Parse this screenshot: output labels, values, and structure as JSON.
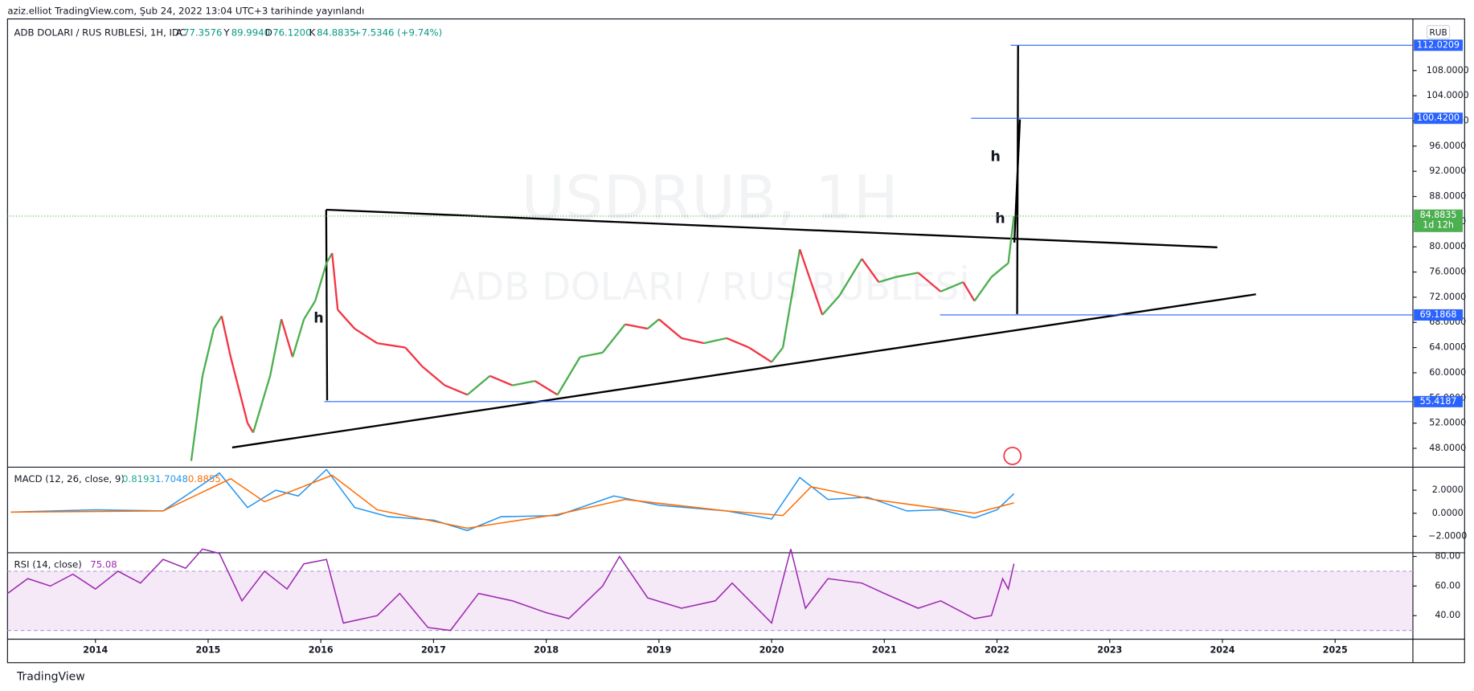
{
  "header": {
    "text": "aziz.elliot TradingView.com, Şub 24, 2022 13:04 UTC+3 tarihinde yayınlandı"
  },
  "legend": {
    "symbol": "ADB DOLARI / RUS RUBLESİ, 1H, IDC",
    "o_key": "A",
    "o": "77.3576",
    "h_key": "Y",
    "h": "89.9940",
    "l_key": "D",
    "l": "76.1200",
    "c_key": "K",
    "c": "84.8835",
    "change": "+7.5346 (+9.74%)"
  },
  "watermark": {
    "line1": "USDRUB, 1H",
    "line2": "ADB DOLARI / RUS RUBLESİ"
  },
  "currency": "RUB",
  "annotations": [
    "h",
    "h",
    "h"
  ],
  "footer": "TradingView",
  "chart_data": [
    {
      "type": "line",
      "name": "price",
      "xlim": [
        2013.22,
        2025.69
      ],
      "xticks": [
        2014,
        2015,
        2016,
        2017,
        2018,
        2019,
        2020,
        2021,
        2022,
        2023,
        2024,
        2025
      ],
      "ylim": [
        45.0,
        116.2
      ],
      "yticks": [
        {
          "value": 48,
          "label": "48.0000"
        },
        {
          "value": 52,
          "label": "52.0000"
        },
        {
          "value": 56,
          "label": "56.0000"
        },
        {
          "value": 60,
          "label": "60.0000"
        },
        {
          "value": 64,
          "label": "64.0000"
        },
        {
          "value": 68,
          "label": "68.0000"
        },
        {
          "value": 72,
          "label": "72.0000"
        },
        {
          "value": 76,
          "label": "76.0000"
        },
        {
          "value": 80,
          "label": "80.0000"
        },
        {
          "value": 84,
          "label": "84.0000"
        },
        {
          "value": 88,
          "label": "88.0000"
        },
        {
          "value": 92,
          "label": "92.0000"
        },
        {
          "value": 96,
          "label": "96.0000"
        },
        {
          "value": 100,
          "label": "100.0000"
        },
        {
          "value": 104,
          "label": "104.0000"
        },
        {
          "value": 108,
          "label": "108.0000"
        }
      ],
      "x": [
        2014.85,
        2014.95,
        2015.05,
        2015.12,
        2015.2,
        2015.35,
        2015.4,
        2015.55,
        2015.65,
        2015.75,
        2015.85,
        2015.95,
        2016.05,
        2016.1,
        2016.15,
        2016.3,
        2016.5,
        2016.75,
        2016.9,
        2017.1,
        2017.3,
        2017.5,
        2017.7,
        2017.9,
        2018.1,
        2018.3,
        2018.5,
        2018.7,
        2018.9,
        2019.0,
        2019.2,
        2019.4,
        2019.6,
        2019.8,
        2020.0,
        2020.1,
        2020.2,
        2020.25,
        2020.35,
        2020.45,
        2020.6,
        2020.8,
        2020.95,
        2021.1,
        2021.3,
        2021.5,
        2021.7,
        2021.8,
        2021.95,
        2022.05,
        2022.1,
        2022.15
      ],
      "values": [
        46,
        59.5,
        67,
        69,
        62.5,
        52,
        50.5,
        59.5,
        68.5,
        62.5,
        68.5,
        71.4,
        77.4,
        79,
        70,
        67,
        64.7,
        64,
        61,
        58,
        56.5,
        59.5,
        58,
        58.7,
        56.5,
        62.5,
        63.2,
        67.7,
        67,
        68.5,
        65.5,
        64.7,
        65.5,
        64,
        61.7,
        64,
        74.4,
        79.6,
        74.4,
        69.2,
        72.2,
        78.1,
        74.4,
        75.2,
        75.9,
        72.9,
        74.4,
        71.4,
        75.2,
        76.7,
        77.4,
        84.8835
      ],
      "up_color": "#4caf50",
      "down_color": "#f23645",
      "levels": [
        {
          "value": 112.0209,
          "label": "112.0209"
        },
        {
          "value": 100.42,
          "label": "100.4200"
        },
        {
          "value": 69.1868,
          "label": "69.1868"
        },
        {
          "value": 55.4187,
          "label": "55.4187"
        }
      ],
      "level_color": "#2962ff",
      "last": {
        "value": 84.8835,
        "label": "84.8835",
        "countdown": "1d 12h",
        "color": "#4caf50"
      }
    },
    {
      "type": "macd",
      "title": "MACD (12, 26, close, 9)",
      "readouts": [
        "0.8193",
        "1.7048",
        "0.8855"
      ],
      "readout_colors": [
        "#22ab94",
        "#2196f3",
        "#ff6d00"
      ],
      "ylim": [
        -3.43,
        4.0
      ],
      "yticks": [
        {
          "value": 2,
          "label": "2.0000"
        },
        {
          "value": 0,
          "label": "0.0000"
        },
        {
          "value": -2,
          "label": "−2.0000"
        }
      ],
      "series": [
        {
          "name": "MACD",
          "color": "#2196f3",
          "x": [
            2013.25,
            2014.0,
            2014.6,
            2014.95,
            2015.1,
            2015.35,
            2015.6,
            2015.8,
            2016.05,
            2016.3,
            2016.6,
            2017.0,
            2017.3,
            2017.6,
            2018.1,
            2018.6,
            2019.0,
            2019.6,
            2020.0,
            2020.25,
            2020.5,
            2020.85,
            2021.2,
            2021.5,
            2021.8,
            2022.0,
            2022.15
          ],
          "values": [
            0.1,
            0.3,
            0.2,
            2.5,
            3.5,
            0.5,
            2.0,
            1.5,
            3.8,
            0.5,
            -0.3,
            -0.6,
            -1.5,
            -0.3,
            -0.2,
            1.5,
            0.7,
            0.2,
            -0.5,
            3.1,
            1.2,
            1.4,
            0.2,
            0.3,
            -0.4,
            0.3,
            1.7
          ]
        },
        {
          "name": "Signal",
          "color": "#ff6d00",
          "x": [
            2013.25,
            2014.6,
            2015.2,
            2015.5,
            2016.1,
            2016.5,
            2017.3,
            2018.1,
            2018.7,
            2019.6,
            2020.1,
            2020.35,
            2020.9,
            2021.8,
            2022.15
          ],
          "values": [
            0.1,
            0.2,
            3.0,
            1.0,
            3.3,
            0.3,
            -1.3,
            -0.1,
            1.2,
            0.2,
            -0.2,
            2.3,
            1.2,
            0,
            0.9
          ]
        }
      ]
    },
    {
      "type": "rsi",
      "title": "RSI (14, close)",
      "readout": "75.08",
      "color": "#9c27b0",
      "band": [
        70,
        30
      ],
      "ylim": [
        24.1,
        82.5
      ],
      "yticks": [
        {
          "value": 80,
          "label": "80.00"
        },
        {
          "value": 60,
          "label": "60.00"
        },
        {
          "value": 40,
          "label": "40.00"
        }
      ],
      "x": [
        2013.22,
        2013.4,
        2013.6,
        2013.8,
        2014.0,
        2014.2,
        2014.4,
        2014.6,
        2014.8,
        2014.95,
        2015.1,
        2015.3,
        2015.5,
        2015.7,
        2015.85,
        2016.05,
        2016.2,
        2016.5,
        2016.7,
        2016.95,
        2017.15,
        2017.4,
        2017.7,
        2018.0,
        2018.2,
        2018.5,
        2018.65,
        2018.9,
        2019.2,
        2019.5,
        2019.65,
        2020.0,
        2020.17,
        2020.3,
        2020.5,
        2020.8,
        2021.0,
        2021.3,
        2021.5,
        2021.8,
        2021.95,
        2022.05,
        2022.1,
        2022.15
      ],
      "values": [
        55,
        65,
        60,
        68,
        58,
        70,
        62,
        78,
        72,
        85,
        82,
        50,
        70,
        58,
        75,
        78,
        35,
        40,
        55,
        32,
        30,
        55,
        50,
        42,
        38,
        60,
        80,
        52,
        45,
        50,
        62,
        35,
        85,
        45,
        65,
        62,
        55,
        45,
        50,
        38,
        40,
        65,
        58,
        75.08
      ]
    }
  ]
}
